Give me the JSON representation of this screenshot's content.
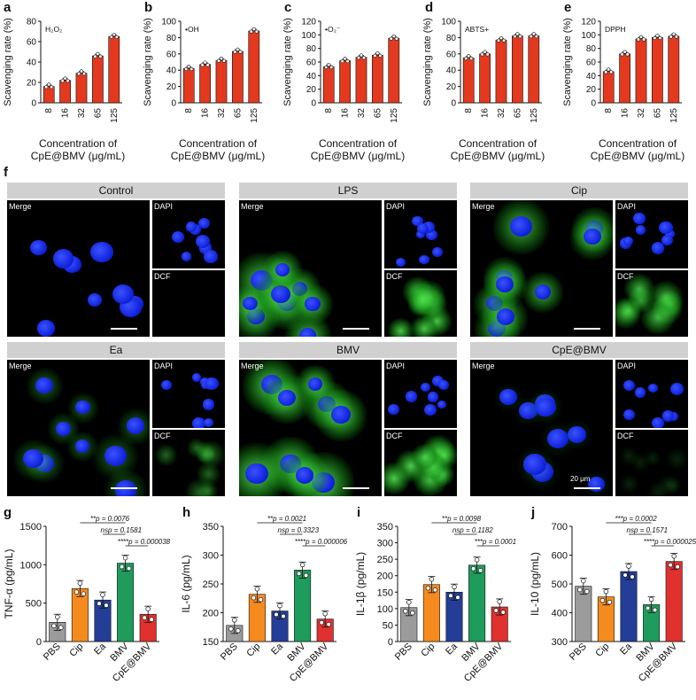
{
  "panels": {
    "letters": [
      "a",
      "b",
      "c",
      "d",
      "e",
      "f",
      "g",
      "h",
      "i",
      "j"
    ]
  },
  "colors": {
    "bar_red": "#e2391f",
    "gray": "#9b9b9b",
    "orange": "#f58a1f",
    "navy": "#243e97",
    "green": "#1f9c5c",
    "red": "#e0312f",
    "nucleus_blue": "#1a2fff",
    "dcf_green": "#3fd93f"
  },
  "scavenging_xlabel_line1": "Concentration of",
  "scavenging_xlabel_line2": "CpE@BMV (μg/mL)",
  "microscopy": {
    "groups": [
      {
        "title": "Control",
        "merge": "Merge",
        "dapi": "DAPI",
        "dcf": "DCF"
      },
      {
        "title": "LPS",
        "merge": "Merge",
        "dapi": "DAPI",
        "dcf": "DCF"
      },
      {
        "title": "Cip",
        "merge": "Merge",
        "dapi": "DAPI",
        "dcf": "DCF"
      },
      {
        "title": "Ea",
        "merge": "Merge",
        "dapi": "DAPI",
        "dcf": "DCF"
      },
      {
        "title": "BMV",
        "merge": "Merge",
        "dapi": "DAPI",
        "dcf": "DCF"
      },
      {
        "title": "CpE@BMV",
        "merge": "Merge",
        "dapi": "DAPI",
        "dcf": "DCF"
      }
    ],
    "scale_label": "20 μm"
  },
  "chart_data": [
    {
      "panel": "a",
      "type": "bar",
      "annotation": "H₂O₂",
      "ylabel": "Scavenging rate (%)",
      "xlabel": "Concentration of CpE@BMV (μg/mL)",
      "categories": [
        "8",
        "16",
        "32",
        "65",
        "125"
      ],
      "values": [
        16,
        22,
        29,
        46,
        65
      ],
      "ylim": [
        0,
        80
      ],
      "yticks": [
        0,
        20,
        40,
        60,
        80
      ]
    },
    {
      "panel": "b",
      "type": "bar",
      "annotation": "•OH",
      "ylabel": "Scavenging rate (%)",
      "xlabel": "Concentration of CpE@BMV (μg/mL)",
      "categories": [
        "8",
        "16",
        "32",
        "65",
        "125"
      ],
      "values": [
        42,
        47,
        52,
        63,
        88
      ],
      "ylim": [
        0,
        100
      ],
      "yticks": [
        0,
        20,
        40,
        60,
        80,
        100
      ]
    },
    {
      "panel": "c",
      "type": "bar",
      "annotation": "•O₂⁻",
      "ylabel": "Scavenging rate (%)",
      "xlabel": "Concentration of CpE@BMV (μg/mL)",
      "categories": [
        "8",
        "16",
        "32",
        "65",
        "125"
      ],
      "values": [
        53,
        62,
        67,
        70,
        95
      ],
      "ylim": [
        0,
        120
      ],
      "yticks": [
        0,
        20,
        40,
        60,
        80,
        100,
        120
      ]
    },
    {
      "panel": "d",
      "type": "bar",
      "annotation": "ABTS+",
      "ylabel": "Scavenging rate (%)",
      "xlabel": "Concentration of CpE@BMV (μg/mL)",
      "categories": [
        "8",
        "16",
        "32",
        "65",
        "125"
      ],
      "values": [
        55,
        60,
        77,
        82,
        82
      ],
      "ylim": [
        0,
        100
      ],
      "yticks": [
        0,
        20,
        40,
        60,
        80,
        100
      ]
    },
    {
      "panel": "e",
      "type": "bar",
      "annotation": "DPPH",
      "ylabel": "Scavenging rate (%)",
      "xlabel": "Concentration of CpE@BMV (μg/mL)",
      "categories": [
        "8",
        "16",
        "32",
        "65",
        "125"
      ],
      "values": [
        46,
        72,
        94,
        96,
        98
      ],
      "ylim": [
        0,
        120
      ],
      "yticks": [
        0,
        20,
        40,
        60,
        80,
        100,
        120
      ]
    },
    {
      "panel": "g",
      "type": "bar",
      "ylabel": "TNF-α (pg/mL)",
      "categories": [
        "PBS",
        "Cip",
        "Ea",
        "BMV",
        "CpE@BMV"
      ],
      "values": [
        250,
        690,
        540,
        1020,
        355
      ],
      "ylim": [
        0,
        1500
      ],
      "yticks": [
        0,
        500,
        1000,
        1500
      ],
      "stats": [
        "**p = 0.0076",
        "nsp = 0.1581",
        "****p = 0.000038"
      ]
    },
    {
      "panel": "h",
      "type": "bar",
      "ylabel": "IL-6 (pg/mL)",
      "categories": [
        "PBS",
        "Cip",
        "Ea",
        "BMV",
        "CpE@BMV"
      ],
      "values": [
        178,
        232,
        203,
        274,
        189
      ],
      "ylim": [
        150,
        350
      ],
      "yticks": [
        150,
        200,
        250,
        300,
        350
      ],
      "stats": [
        "**p = 0.0021",
        "nsp = 0.3323",
        "****p = 0.000006"
      ]
    },
    {
      "panel": "i",
      "type": "bar",
      "ylabel": "IL-1β (pg/mL)",
      "categories": [
        "PBS",
        "Cip",
        "Ea",
        "BMV",
        "CpE@BMV"
      ],
      "values": [
        103,
        173,
        150,
        232,
        105
      ],
      "ylim": [
        0,
        350
      ],
      "yticks": [
        0,
        50,
        100,
        150,
        200,
        250,
        300,
        350
      ],
      "stats": [
        "**p = 0.0098",
        "nsp = 0.1182",
        "***p = 0.0001"
      ]
    },
    {
      "panel": "j",
      "type": "bar",
      "ylabel": "IL-10 (pg/mL)",
      "categories": [
        "PBS",
        "Cip",
        "Ea",
        "BMV",
        "CpE@BMV"
      ],
      "values": [
        492,
        455,
        543,
        428,
        578
      ],
      "ylim": [
        300,
        700
      ],
      "yticks": [
        300,
        400,
        500,
        600,
        700
      ],
      "stats": [
        "***p = 0.0002",
        "nsp = 0.1571",
        "****p = 0.000025"
      ]
    }
  ]
}
